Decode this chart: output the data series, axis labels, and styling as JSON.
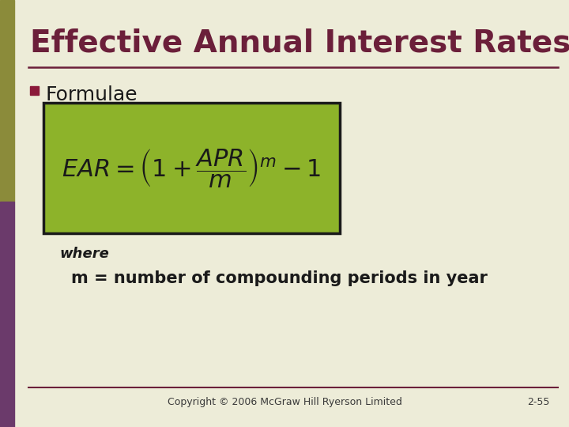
{
  "title": "Effective Annual Interest Rates",
  "title_color": "#6B1F3A",
  "title_fontsize": 28,
  "background_color": "#EDECD8",
  "left_bar_top_color": "#8B8B3A",
  "left_bar_bottom_color": "#6B3A6B",
  "bullet_color": "#8B1A3A",
  "bullet_text": "Formulae",
  "bullet_fontsize": 18,
  "formula_box_color": "#8DB32A",
  "formula_box_edge_color": "#1A1A1A",
  "formula_text_color": "#1A1A1A",
  "where_text": "where",
  "where_fontsize": 13,
  "m_text": "m = number of compounding periods in year",
  "m_fontsize": 15,
  "footer_text": "Copyright © 2006 McGraw Hill Ryerson Limited",
  "footer_right": "2-55",
  "footer_fontsize": 9,
  "hr_color": "#6B1F3A"
}
